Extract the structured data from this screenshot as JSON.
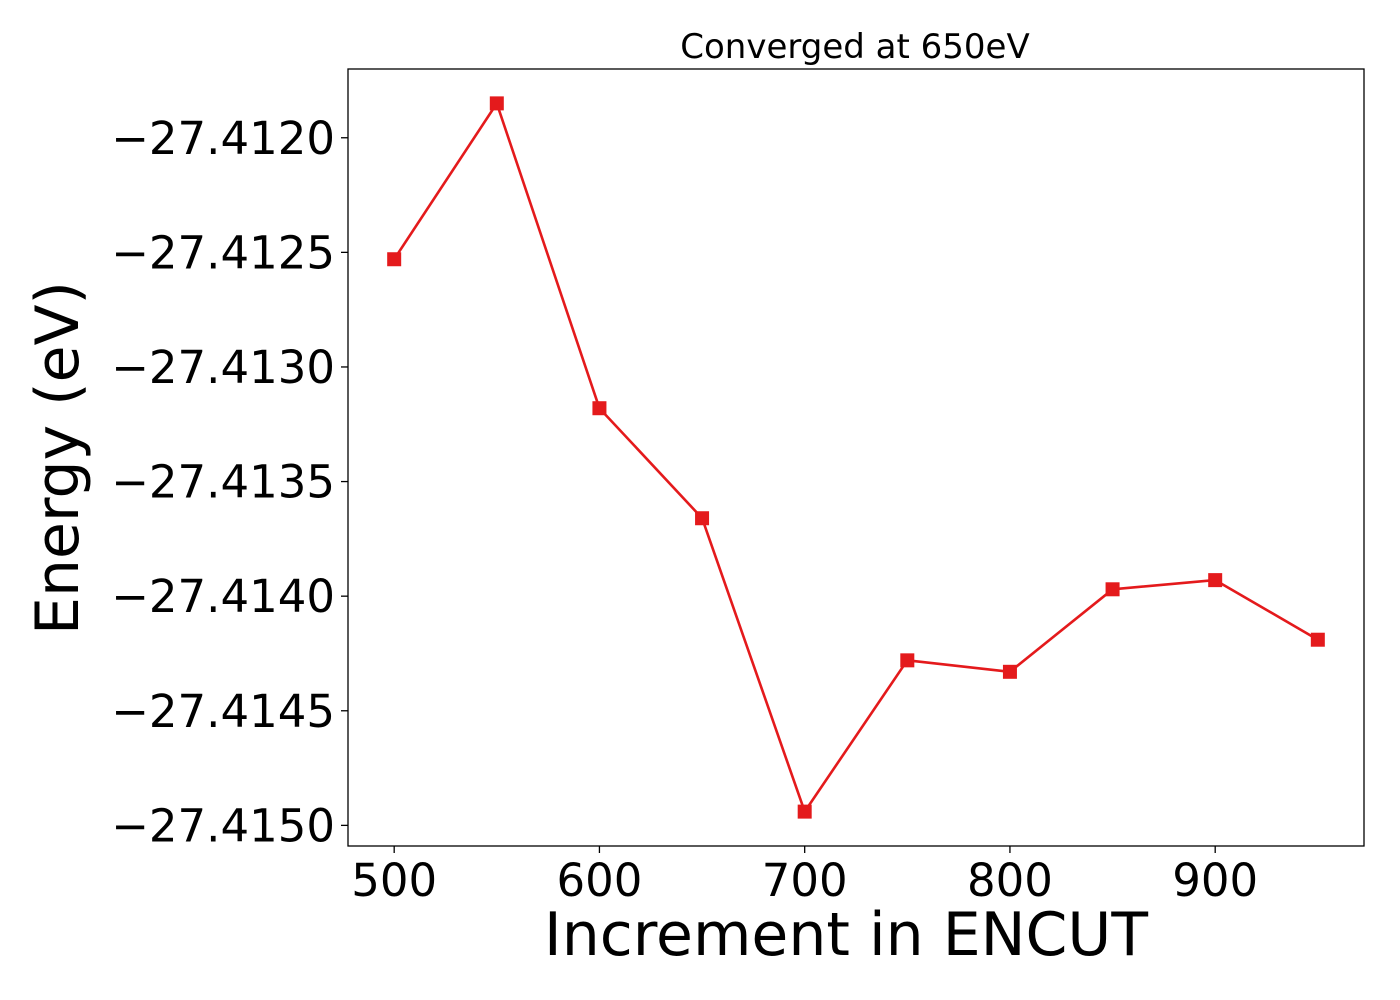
{
  "chart_data": {
    "type": "line",
    "title": "Converged at 650eV",
    "xlabel": "Increment in ENCUT",
    "ylabel": "Energy (eV)",
    "x": [
      500,
      550,
      600,
      650,
      700,
      750,
      800,
      850,
      900,
      950
    ],
    "series": [
      {
        "values": [
          -27.41253,
          -27.41185,
          -27.41318,
          -27.41366,
          -27.41494,
          -27.41428,
          -27.41433,
          -27.41397,
          -27.41393,
          -27.41419
        ],
        "color": "#e41a1c",
        "marker": "square"
      }
    ],
    "xticks": [
      500,
      600,
      700,
      800,
      900
    ],
    "xtick_labels": [
      "500",
      "600",
      "700",
      "800",
      "900"
    ],
    "yticks": [
      -27.412,
      -27.4125,
      -27.413,
      -27.4135,
      -27.414,
      -27.4145,
      -27.415
    ],
    "ytick_labels": [
      "−27.4120",
      "−27.4125",
      "−27.4130",
      "−27.4135",
      "−27.4140",
      "−27.4145",
      "−27.4150"
    ],
    "xlim": [
      477.5,
      972.5
    ],
    "ylim": [
      -27.41509,
      -27.4117
    ],
    "grid": false,
    "legend": "none"
  }
}
